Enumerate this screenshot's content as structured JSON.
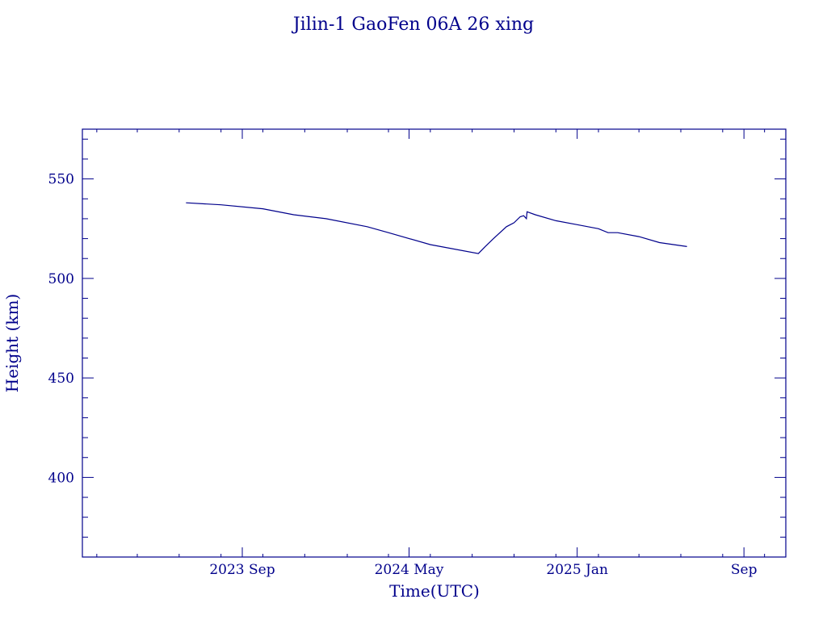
{
  "chart_data": {
    "type": "line",
    "title": "Jilin-1 GaoFen 06A 26 xing",
    "xlabel": "Time(UTC)",
    "ylabel": "Height (km)",
    "ylim": [
      360,
      575
    ],
    "xlim": [
      "2023-01-11",
      "2025-11-01"
    ],
    "x_ticks": [
      {
        "date": "2023-09-01",
        "label": "2023 Sep"
      },
      {
        "date": "2024-05-01",
        "label": "2024 May"
      },
      {
        "date": "2025-01-01",
        "label": "2025 Jan"
      },
      {
        "date": "2025-09-01",
        "label": "Sep"
      }
    ],
    "y_ticks": [
      400,
      450,
      500,
      550
    ],
    "grid": false,
    "color": "#00008b",
    "series": [
      {
        "x": [
          "2023-06-11",
          "2023-08-01",
          "2023-10-01",
          "2023-11-15",
          "2024-01-01",
          "2024-03-01",
          "2024-04-01",
          "2024-06-01",
          "2024-08-10",
          "2024-08-20",
          "2024-09-01",
          "2024-09-20",
          "2024-10-01",
          "2024-10-10",
          "2024-10-15",
          "2024-10-19",
          "2024-10-20",
          "2024-11-01",
          "2024-12-01",
          "2025-01-01",
          "2025-02-01",
          "2025-02-15",
          "2025-03-01",
          "2025-04-01",
          "2025-05-01",
          "2025-06-10"
        ],
        "y": [
          538,
          537,
          535,
          532,
          530,
          526,
          523,
          517,
          512.5,
          516,
          520,
          526,
          528,
          531,
          531.5,
          530,
          533.5,
          532,
          529,
          527,
          525,
          523,
          523,
          521,
          518,
          516
        ]
      }
    ]
  }
}
